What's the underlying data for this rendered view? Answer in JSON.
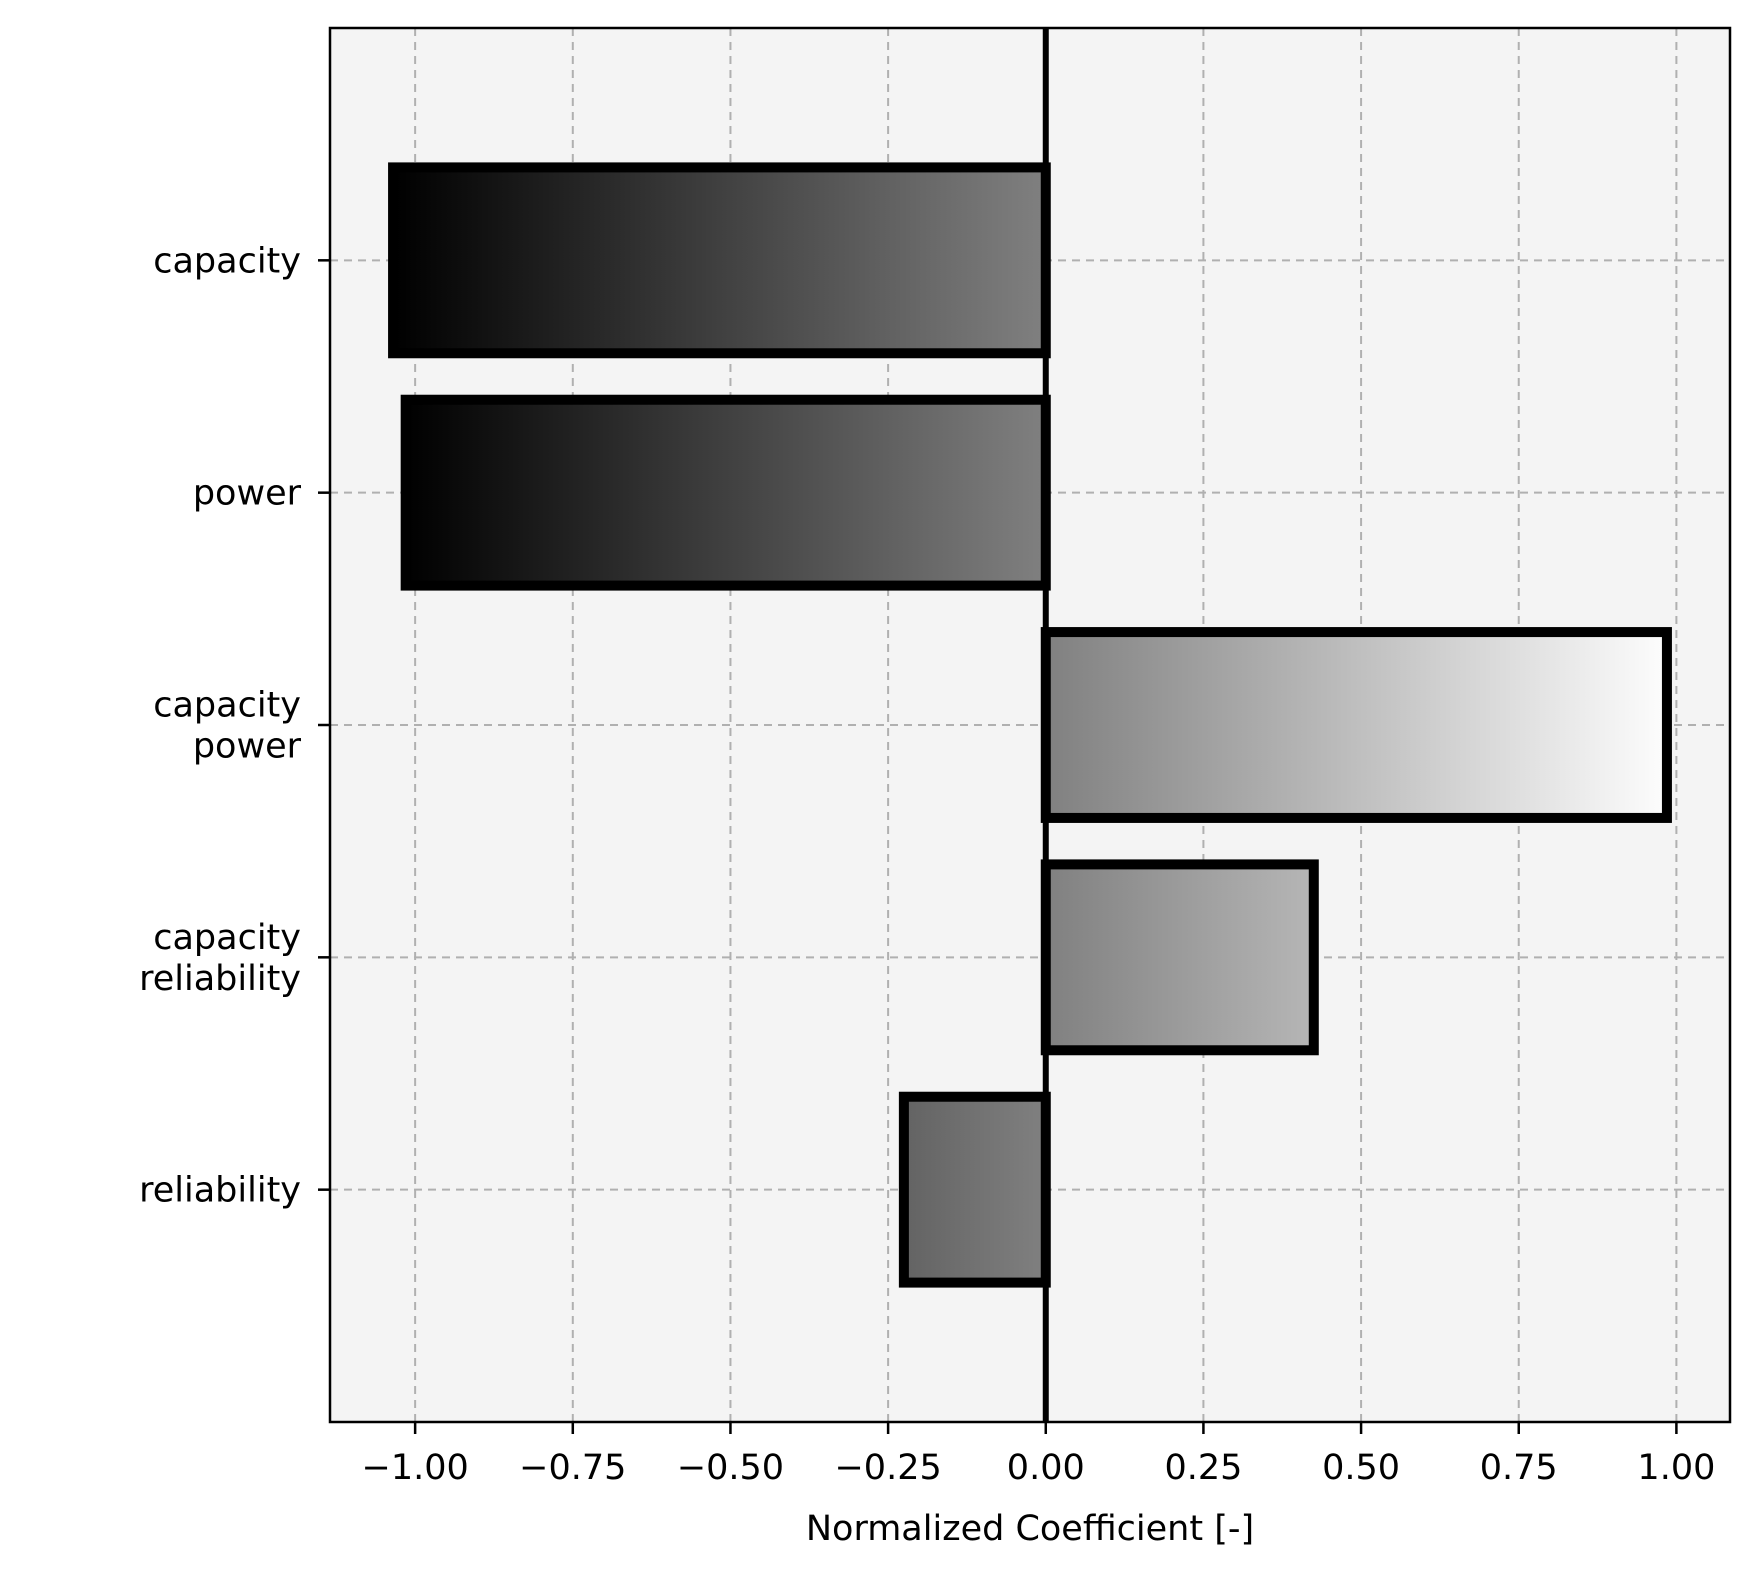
{
  "chart_data": {
    "type": "bar",
    "orientation": "horizontal",
    "xlabel": "Normalized Coefficient [-]",
    "ylabel": "",
    "xlim": [
      -1.135,
      1.085
    ],
    "xticks": [
      {
        "value": -1.0,
        "label": "−1.00"
      },
      {
        "value": -0.75,
        "label": "−0.75"
      },
      {
        "value": -0.5,
        "label": "−0.50"
      },
      {
        "value": -0.25,
        "label": "−0.25"
      },
      {
        "value": 0.0,
        "label": "0.00"
      },
      {
        "value": 0.25,
        "label": "0.25"
      },
      {
        "value": 0.5,
        "label": "0.50"
      },
      {
        "value": 0.75,
        "label": "0.75"
      },
      {
        "value": 1.0,
        "label": "1.00"
      }
    ],
    "categories": [
      {
        "lines": [
          "capacity"
        ]
      },
      {
        "lines": [
          "power"
        ]
      },
      {
        "lines": [
          "capacity",
          "power"
        ]
      },
      {
        "lines": [
          "capacity",
          "reliability"
        ]
      },
      {
        "lines": [
          "reliability"
        ]
      }
    ],
    "values": [
      -1.035,
      -1.015,
      0.985,
      0.425,
      -0.225
    ],
    "grid": true,
    "colormap": "greys (black at -1, white at +1)",
    "colors": {
      "plot_background": "#f4f4f4",
      "grid": "#b0b0b0",
      "bar_edge": "#000000",
      "zero_line": "#000000"
    }
  }
}
